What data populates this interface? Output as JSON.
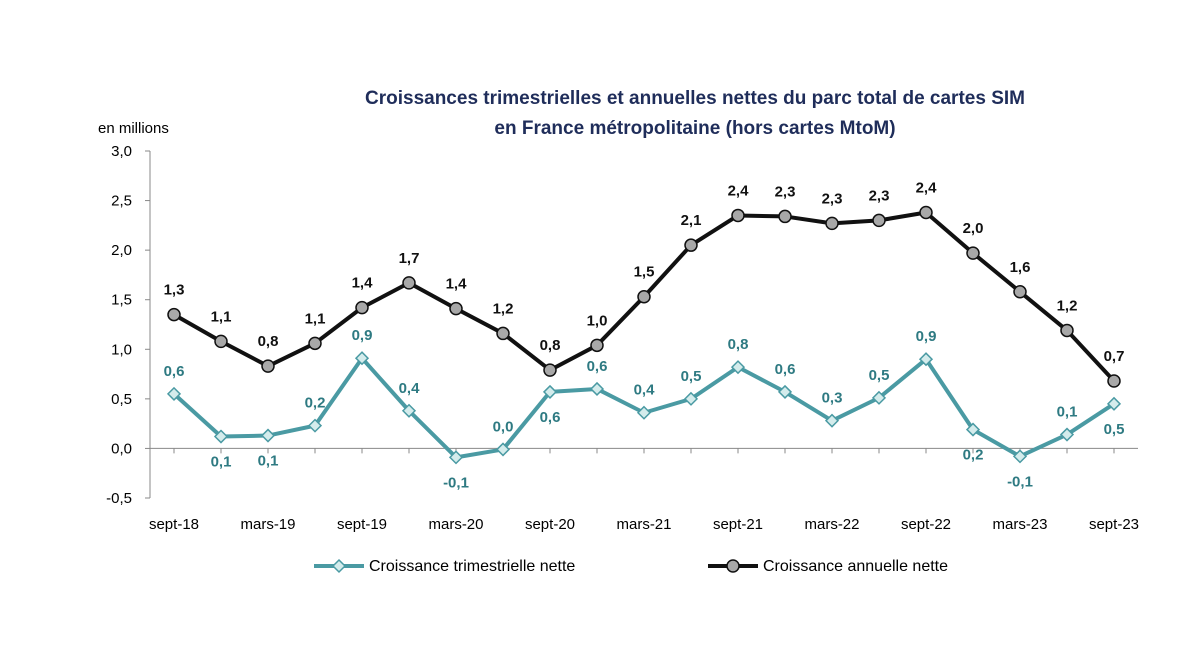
{
  "chart_data": {
    "type": "line",
    "title": [
      "Croissances trimestrielles et annuelles nettes du parc total de cartes SIM",
      "en France métropolitaine (hors cartes MtoM)"
    ],
    "ylabel": "en millions",
    "ylim": [
      -0.5,
      3.0
    ],
    "yticks": [
      3.0,
      2.5,
      2.0,
      1.5,
      1.0,
      0.5,
      0.0,
      -0.5
    ],
    "ytick_labels": [
      "3,0",
      "2,5",
      "2,0",
      "1,5",
      "1,0",
      "0,5",
      "0,0",
      "-0,5"
    ],
    "x_tick_labels": [
      "sept-18",
      "mars-19",
      "sept-19",
      "mars-20",
      "sept-20",
      "mars-21",
      "sept-21",
      "mars-22",
      "sept-22",
      "mars-23",
      "sept-23"
    ],
    "n_points": 21,
    "series": [
      {
        "name": "Croissance trimestrielle nette",
        "color": "#4a9aa3",
        "marker": "diamond",
        "values": [
          0.55,
          0.12,
          0.13,
          0.23,
          0.91,
          0.38,
          -0.09,
          -0.01,
          0.57,
          0.6,
          0.36,
          0.5,
          0.82,
          0.57,
          0.28,
          0.51,
          0.9,
          0.19,
          -0.08,
          0.14,
          0.45
        ],
        "labels": [
          "0,6",
          "0,1",
          "0,1",
          "0,2",
          "0,9",
          "0,4",
          "-0,1",
          "0,0",
          "0,6",
          "0,6",
          "0,4",
          "0,5",
          "0,8",
          "0,6",
          "0,3",
          "0,5",
          "0,9",
          "0,2",
          "-0,1",
          "0,1",
          "0,5"
        ]
      },
      {
        "name": "Croissance annuelle nette",
        "color": "#111111",
        "marker": "circle",
        "values": [
          1.35,
          1.08,
          0.83,
          1.06,
          1.42,
          1.67,
          1.41,
          1.16,
          0.79,
          1.04,
          1.53,
          2.05,
          2.35,
          2.34,
          2.27,
          2.3,
          2.38,
          1.97,
          1.58,
          1.19,
          0.68
        ],
        "labels": [
          "1,3",
          "1,1",
          "0,8",
          "1,1",
          "1,4",
          "1,7",
          "1,4",
          "1,2",
          "0,8",
          "1,0",
          "1,5",
          "2,1",
          "2,4",
          "2,3",
          "2,3",
          "2,3",
          "2,4",
          "2,0",
          "1,6",
          "1,2",
          "0,7"
        ]
      }
    ],
    "legend_position": "bottom"
  }
}
